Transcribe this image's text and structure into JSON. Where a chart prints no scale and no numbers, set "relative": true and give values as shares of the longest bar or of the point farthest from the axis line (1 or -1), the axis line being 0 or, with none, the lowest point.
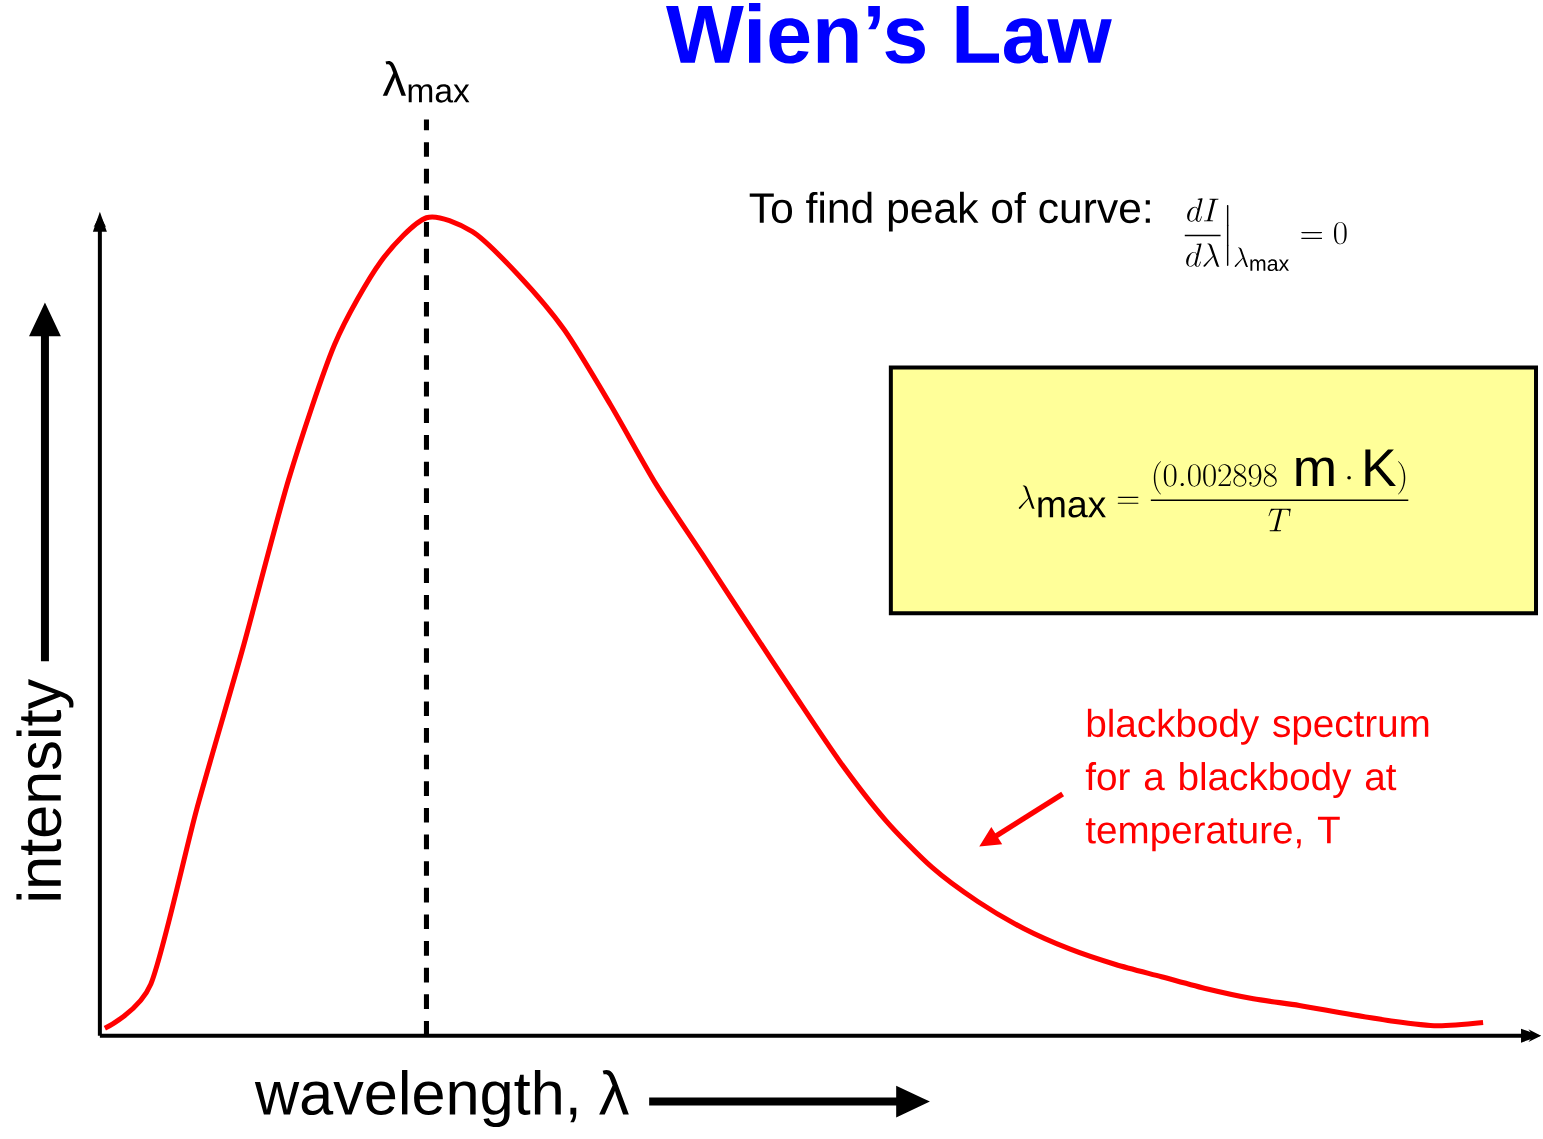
{
  "chart_data": {
    "type": "line",
    "title": "Wien’s Law",
    "xlabel": "wavelength, λ",
    "ylabel": "intensity",
    "relative": true,
    "categories": [
      null,
      null,
      null,
      null,
      null,
      null,
      null,
      null,
      null,
      null,
      null,
      null,
      null,
      null,
      null,
      null,
      null,
      null,
      null,
      null,
      null,
      null,
      null,
      null,
      null,
      null,
      null,
      null,
      null,
      null,
      null
    ],
    "series": [
      {
        "color": "#ff0000",
        "values": [
          0.009,
          0.063,
          0.277,
          0.473,
          0.68,
          0.845,
          0.946,
          1.0,
          0.983,
          0.93,
          0.863,
          0.772,
          0.674,
          0.589,
          0.503,
          0.418,
          0.335,
          0.263,
          0.206,
          0.164,
          0.131,
          0.106,
          0.087,
          0.072,
          0.057,
          0.045,
          0.037,
          0.027,
          0.018,
          0.012,
          0.016
        ]
      }
    ],
    "annotations": [
      "To find peak of curve:",
      "\\frac{dI}{d\\lambda}\\Big|_{\\lambda_{\\max}} = 0",
      "\\lambda_{\\max} = \\frac{(0.002898\\ \\mathrm{m\\cdot K})}{T}",
      "blackbody spectrum for a blackbody at temperature, T",
      "λ$_{max}$"
    ]
  }
}
